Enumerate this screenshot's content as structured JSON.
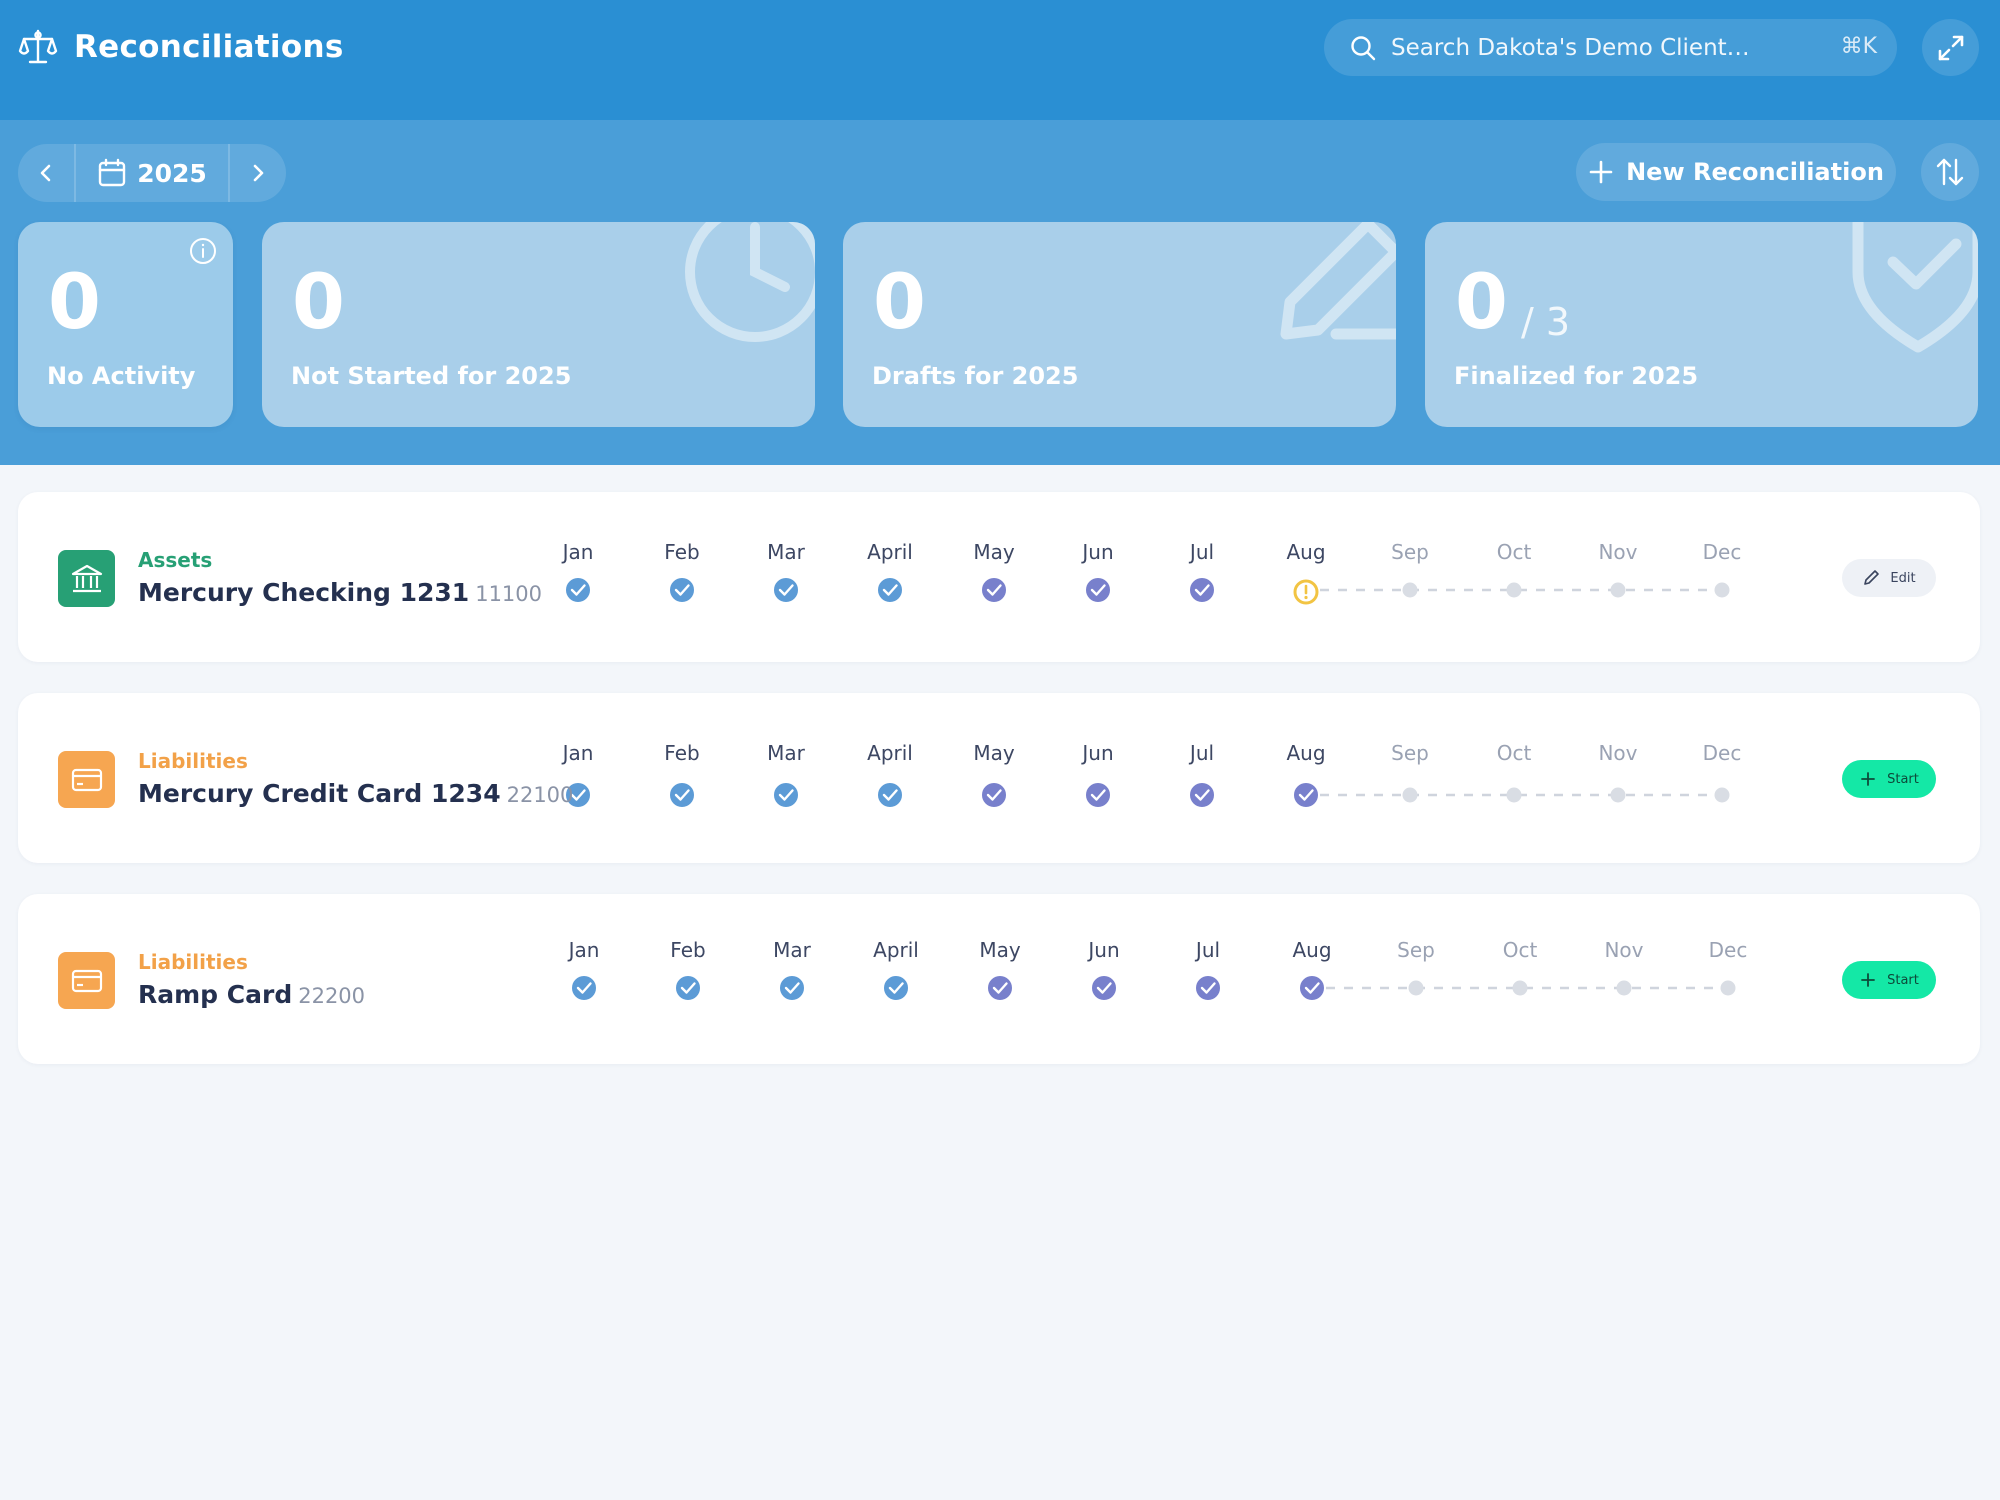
{
  "header": {
    "title": "Reconciliations",
    "search_placeholder": "Search Dakota's Demo Client…",
    "search_shortcut": "⌘K"
  },
  "toolbar": {
    "year": "2025",
    "new_reconciliation_label": "New Reconciliation"
  },
  "stats": [
    {
      "value": "0",
      "label": "No Activity"
    },
    {
      "value": "0",
      "label": "Not Started for 2025"
    },
    {
      "value": "0",
      "label": "Drafts for 2025"
    },
    {
      "value": "0",
      "suffix": "/ 3",
      "label": "Finalized for 2025"
    }
  ],
  "months": [
    "Jan",
    "Feb",
    "Mar",
    "April",
    "May",
    "Jun",
    "Jul",
    "Aug",
    "Sep",
    "Oct",
    "Nov",
    "Dec"
  ],
  "accounts": [
    {
      "category": "Assets",
      "name": "Mercury Checking 1231",
      "number": "11100",
      "icon": "bank-icon",
      "color": "#27a075",
      "category_color": "#27a075",
      "month_status": [
        "done",
        "done",
        "done",
        "done",
        "done",
        "done",
        "done",
        "warning",
        "empty",
        "empty",
        "empty",
        "empty"
      ],
      "action_label": "Edit",
      "action_type": "edit"
    },
    {
      "category": "Liabilities",
      "name": "Mercury Credit Card 1234",
      "number": "22100",
      "icon": "credit-card-icon",
      "color": "#f6a651",
      "category_color": "#f2a148",
      "month_status": [
        "done",
        "done",
        "done",
        "done",
        "done",
        "done",
        "done",
        "done",
        "empty",
        "empty",
        "empty",
        "empty"
      ],
      "action_label": "Start",
      "action_type": "start"
    },
    {
      "category": "Liabilities",
      "name": "Ramp Card",
      "number": "22200",
      "icon": "credit-card-icon",
      "color": "#f6a651",
      "category_color": "#f2a148",
      "month_status": [
        "done",
        "done",
        "done",
        "done",
        "done",
        "done",
        "done",
        "done",
        "empty",
        "empty",
        "empty",
        "empty"
      ],
      "action_label": "Start",
      "action_type": "start"
    }
  ],
  "colors": {
    "header_bg": "#2a8fd3",
    "band_bg": "#4a9ed8",
    "timeline_blue": "#5c9bd6",
    "timeline_purple": "#7880cc",
    "warning": "#f2c443",
    "start_green": "#14e8a6"
  }
}
